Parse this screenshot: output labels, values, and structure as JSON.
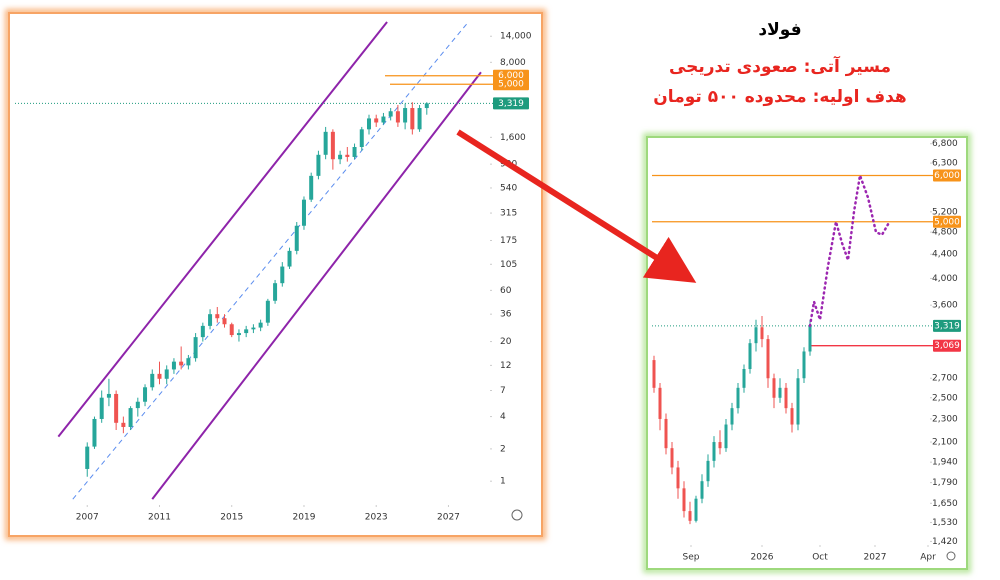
{
  "header": {
    "title": "فولاد",
    "line1": "مسیر آتی: صعودی تدریجی",
    "line2": "هدف اولیه: محدوده ۵۰۰ تومان"
  },
  "chart_data": [
    {
      "type": "candlestick",
      "yscale": "log",
      "up_color": "#26a69a",
      "down_color": "#ef5350",
      "xlim": [
        2003,
        2029.3
      ],
      "xticks": [
        2007,
        2011,
        2015,
        2019,
        2023,
        2027
      ],
      "ylim": [
        0.6,
        19000
      ],
      "yticks": [
        1,
        2,
        4,
        7,
        12,
        20,
        36,
        60,
        105,
        175,
        315,
        540,
        900,
        {
          "value": 1600,
          "label": "1,600"
        },
        {
          "value": 8000,
          "label": "8,000"
        },
        {
          "value": 14000,
          "label": "14,000"
        }
      ],
      "x": [
        2007.0,
        2007.4,
        2007.8,
        2008.2,
        2008.6,
        2009.0,
        2009.4,
        2009.8,
        2010.2,
        2010.6,
        2011.0,
        2011.4,
        2011.8,
        2012.2,
        2012.6,
        2013.0,
        2013.4,
        2013.8,
        2014.2,
        2014.6,
        2015.0,
        2015.4,
        2015.8,
        2016.2,
        2016.6,
        2017.0,
        2017.4,
        2017.8,
        2018.2,
        2018.6,
        2019.0,
        2019.4,
        2019.8,
        2020.2,
        2020.6,
        2021.0,
        2021.4,
        2021.8,
        2022.2,
        2022.6,
        2023.0,
        2023.4,
        2023.8,
        2024.2,
        2024.6,
        2025.0,
        2025.4,
        2025.8
      ],
      "open": [
        1.3,
        2.1,
        3.8,
        6,
        6.5,
        3.5,
        3.2,
        4.8,
        5.5,
        7.5,
        10,
        9,
        11,
        13,
        12,
        14,
        22,
        28,
        36,
        33,
        29,
        23,
        24,
        26,
        27,
        30,
        48,
        70,
        100,
        140,
        240,
        420,
        700,
        1100,
        1800,
        1000,
        1100,
        1050,
        1300,
        1900,
        2400,
        2200,
        2500,
        2800,
        2200,
        3000,
        1900,
        3000
      ],
      "high": [
        2.3,
        4,
        7,
        9,
        7,
        4,
        5,
        6,
        8,
        11,
        13,
        12,
        14,
        18,
        15,
        24,
        30,
        40,
        42,
        36,
        30,
        26,
        28,
        29,
        32,
        50,
        75,
        110,
        150,
        260,
        450,
        750,
        1200,
        2000,
        1900,
        1200,
        1300,
        1400,
        2000,
        2600,
        2600,
        2700,
        3000,
        3200,
        3300,
        3400,
        3200,
        3400
      ],
      "low": [
        1.1,
        2,
        3.5,
        5,
        3,
        2.8,
        3,
        4,
        5,
        7,
        8,
        8,
        10,
        11,
        11,
        13,
        20,
        26,
        30,
        27,
        22,
        20,
        22,
        24,
        25,
        28,
        45,
        65,
        95,
        130,
        220,
        400,
        650,
        1000,
        800,
        900,
        950,
        1000,
        1200,
        1700,
        2000,
        2100,
        2300,
        2000,
        1900,
        1700,
        1800,
        2600
      ],
      "close": [
        2.1,
        3.8,
        6,
        6.5,
        3.5,
        3.2,
        4.8,
        5.5,
        7.5,
        10,
        9,
        11,
        13,
        12,
        14,
        22,
        28,
        36,
        33,
        29,
        23,
        24,
        26,
        27,
        30,
        48,
        70,
        100,
        140,
        240,
        420,
        700,
        1100,
        1800,
        1000,
        1100,
        1050,
        1300,
        1900,
        2400,
        2200,
        2500,
        2800,
        2200,
        3000,
        1900,
        3000,
        3319
      ],
      "levels": [
        {
          "value": 6000,
          "label": "6,000",
          "color": "#f7931a",
          "style": "solid"
        },
        {
          "value": 5000,
          "label": "5,000",
          "color": "#f7931a",
          "style": "solid"
        },
        {
          "value": 3319,
          "label": "3,319",
          "color": "#1e9b7e",
          "style": "dotted"
        }
      ],
      "channels": [
        {
          "color": "#8e24aa",
          "style": "solid",
          "x": [
            2005.4,
            2023.6
          ],
          "y": [
            2.6,
            19000
          ]
        },
        {
          "color": "#8e24aa",
          "style": "solid",
          "x": [
            2010.6,
            2028.8
          ],
          "y": [
            0.68,
            6460
          ]
        },
        {
          "color": "#5b8def",
          "style": "dashed",
          "x": [
            2006.2,
            2028.1
          ],
          "y": [
            0.68,
            19000
          ]
        }
      ]
    },
    {
      "type": "candlestick",
      "yscale": "log",
      "up_color": "#26a69a",
      "down_color": "#ef5350",
      "xlim": [
        0,
        139
      ],
      "xticks": [
        {
          "value": 19.5,
          "label": "Sep"
        },
        {
          "value": 55,
          "label": "2026"
        },
        {
          "value": 84,
          "label": "Oct"
        },
        {
          "value": 111.5,
          "label": "2027"
        },
        {
          "value": 138,
          "label": "Apr"
        }
      ],
      "ylim": [
        1400,
        6900
      ],
      "yticks": [
        {
          "value": 6800,
          "label": "6,800"
        },
        {
          "value": 6300,
          "label": "6,300"
        },
        {
          "value": 5200,
          "label": "5,200"
        },
        {
          "value": 4800,
          "label": "4,800"
        },
        {
          "value": 4400,
          "label": "4,400"
        },
        {
          "value": 4000,
          "label": "4,000"
        },
        {
          "value": 3600,
          "label": "3,600"
        },
        {
          "value": 2700,
          "label": "2,700"
        },
        {
          "value": 2500,
          "label": "2,500"
        },
        {
          "value": 2300,
          "label": "2,300"
        },
        {
          "value": 2100,
          "label": "2,100"
        },
        {
          "value": 1940,
          "label": "1,940"
        },
        {
          "value": 1790,
          "label": "1,790"
        },
        {
          "value": 1650,
          "label": "1,650"
        },
        {
          "value": 1530,
          "label": "1,530"
        },
        {
          "value": 1420,
          "label": "1,420"
        }
      ],
      "x": [
        1,
        4,
        7,
        10,
        13,
        16,
        19,
        22,
        25,
        28,
        31,
        34,
        37,
        40,
        43,
        46,
        49,
        52,
        55,
        58,
        61,
        64,
        67,
        70,
        73,
        76,
        79
      ],
      "open": [
        2900,
        2600,
        2300,
        2050,
        1900,
        1750,
        1600,
        1540,
        1680,
        1800,
        1950,
        2100,
        2050,
        2250,
        2400,
        2600,
        2800,
        3100,
        3300,
        3150,
        2700,
        2500,
        2600,
        2400,
        2250,
        2700,
        3000
      ],
      "high": [
        2950,
        2650,
        2350,
        2100,
        1950,
        1800,
        1660,
        1700,
        1850,
        2000,
        2150,
        2200,
        2300,
        2450,
        2650,
        2850,
        3150,
        3400,
        3450,
        3200,
        2750,
        2700,
        2650,
        2450,
        2800,
        3050,
        3400
      ],
      "low": [
        2550,
        2200,
        2000,
        1850,
        1680,
        1560,
        1520,
        1530,
        1650,
        1760,
        1900,
        2000,
        2020,
        2200,
        2350,
        2550,
        2750,
        3000,
        3050,
        2600,
        2400,
        2450,
        2350,
        2180,
        2200,
        2650,
        2950
      ],
      "close": [
        2600,
        2300,
        2050,
        1900,
        1750,
        1600,
        1540,
        1680,
        1800,
        1950,
        2100,
        2050,
        2250,
        2400,
        2600,
        2800,
        3100,
        3300,
        3150,
        2700,
        2500,
        2600,
        2400,
        2250,
        2700,
        3000,
        3319
      ],
      "levels": [
        {
          "value": 6000,
          "label": "6,000",
          "color": "#f7931a",
          "style": "solid"
        },
        {
          "value": 5000,
          "label": "5,000",
          "color": "#f7931a",
          "style": "solid"
        },
        {
          "value": 3319,
          "label": "3,319",
          "color": "#1e9b7e",
          "style": "dotted"
        },
        {
          "value": 3069,
          "label": "3,069",
          "color": "#f23645",
          "style": "solid"
        }
      ],
      "projection": {
        "color": "#9c27b0",
        "x": [
          79,
          81,
          84,
          88,
          92,
          95,
          98,
          101,
          104,
          108,
          112,
          115,
          118
        ],
        "y": [
          3319,
          3650,
          3400,
          4200,
          5000,
          4600,
          4300,
          5200,
          6000,
          5500,
          4800,
          4750,
          4950
        ]
      }
    }
  ]
}
